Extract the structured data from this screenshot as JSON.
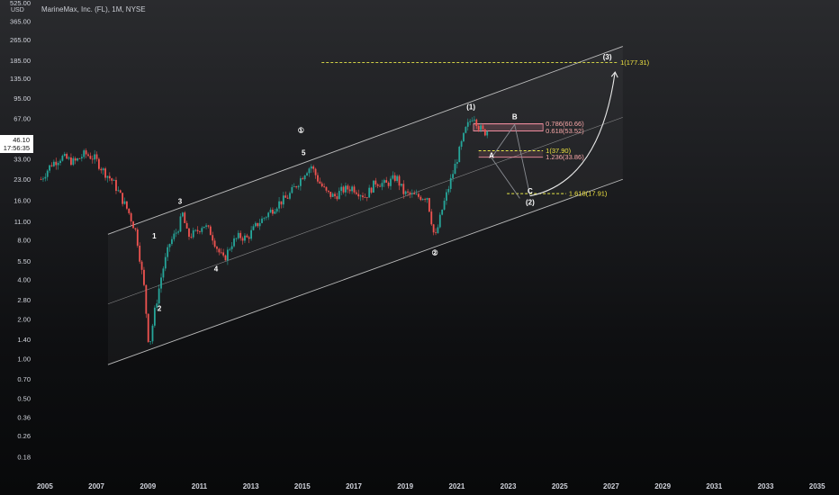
{
  "header": {
    "title": "MarineMax, Inc. (FL), 1M, NYSE",
    "currency": "USD",
    "price": "46.10",
    "countdown": "17:56:35"
  },
  "colors": {
    "candle_up": "#26a69a",
    "candle_down": "#ef5350",
    "channel": "#d8d8d8",
    "fib_line": "#e8e84a",
    "fib_text_yellow": "#f0e442",
    "fib_text_pink": "#f8a7a7",
    "fib_box": "#f48fa0"
  },
  "chart_data": {
    "type": "candlestick",
    "y_scale": "log",
    "ylim": [
      0.15,
      525
    ],
    "y_ticks": [
      "525.00",
      "365.00",
      "265.00",
      "185.00",
      "135.00",
      "95.00",
      "67.00",
      "33.00",
      "23.00",
      "16.00",
      "11.00",
      "8.00",
      "5.50",
      "4.00",
      "2.80",
      "2.00",
      "1.40",
      "1.00",
      "0.70",
      "0.50",
      "0.36",
      "0.26",
      "0.18"
    ],
    "x_ticks": [
      "2005",
      "2007",
      "2009",
      "2011",
      "2013",
      "2015",
      "2017",
      "2019",
      "2021",
      "2023",
      "2025",
      "2027",
      "2029",
      "2031",
      "2033",
      "2035"
    ],
    "xlim": [
      2004.6,
      2035.9
    ],
    "price_path": [
      [
        2004.9,
        23
      ],
      [
        2005.3,
        30
      ],
      [
        2005.7,
        34
      ],
      [
        2006.2,
        31
      ],
      [
        2006.6,
        36
      ],
      [
        2007.0,
        33
      ],
      [
        2007.3,
        27
      ],
      [
        2007.7,
        22
      ],
      [
        2008.0,
        17
      ],
      [
        2008.3,
        13
      ],
      [
        2008.6,
        9
      ],
      [
        2008.9,
        3.5
      ],
      [
        2009.1,
        1.2
      ],
      [
        2009.3,
        2.2
      ],
      [
        2009.6,
        4.5
      ],
      [
        2009.9,
        7.5
      ],
      [
        2010.2,
        9.5
      ],
      [
        2010.4,
        12.5
      ],
      [
        2010.6,
        8.5
      ],
      [
        2010.9,
        9
      ],
      [
        2011.2,
        10.5
      ],
      [
        2011.5,
        9
      ],
      [
        2011.8,
        6.5
      ],
      [
        2012.0,
        5.6
      ],
      [
        2012.3,
        7.5
      ],
      [
        2012.6,
        8.5
      ],
      [
        2012.9,
        8.2
      ],
      [
        2013.3,
        10.5
      ],
      [
        2013.7,
        12.5
      ],
      [
        2014.1,
        15
      ],
      [
        2014.5,
        17
      ],
      [
        2014.9,
        22
      ],
      [
        2015.2,
        27
      ],
      [
        2015.4,
        29
      ],
      [
        2015.7,
        22
      ],
      [
        2016.0,
        18
      ],
      [
        2016.3,
        17
      ],
      [
        2016.6,
        19
      ],
      [
        2017.0,
        20
      ],
      [
        2017.5,
        17
      ],
      [
        2017.9,
        22
      ],
      [
        2018.3,
        21
      ],
      [
        2018.7,
        24
      ],
      [
        2019.0,
        18
      ],
      [
        2019.5,
        17
      ],
      [
        2019.9,
        17
      ],
      [
        2020.2,
        8
      ],
      [
        2020.5,
        14
      ],
      [
        2020.8,
        22
      ],
      [
        2021.1,
        35
      ],
      [
        2021.4,
        55
      ],
      [
        2021.7,
        72
      ],
      [
        2021.9,
        58
      ],
      [
        2022.1,
        52
      ],
      [
        2022.3,
        55
      ]
    ],
    "wave_labels": [
      {
        "t": "1",
        "x": 2009.3,
        "y": 8.2
      },
      {
        "t": "2",
        "x": 2009.5,
        "y": 2.3
      },
      {
        "t": "3",
        "x": 2010.3,
        "y": 15
      },
      {
        "t": "4",
        "x": 2011.7,
        "y": 4.6
      },
      {
        "t": "5",
        "x": 2015.1,
        "y": 35
      },
      {
        "t": "①",
        "x": 2015.0,
        "y": 52,
        "circle": true
      },
      {
        "t": "②",
        "x": 2020.2,
        "y": 6.1,
        "circle": true
      },
      {
        "t": "(1)",
        "x": 2021.6,
        "y": 78
      },
      {
        "t": "(2)",
        "x": 2023.9,
        "y": 14.8
      },
      {
        "t": "(3)",
        "x": 2026.9,
        "y": 188
      },
      {
        "t": "A",
        "x": 2022.4,
        "y": 33.5,
        "yellow": true
      },
      {
        "t": "B",
        "x": 2023.3,
        "y": 66,
        "yellow": true
      },
      {
        "t": "C",
        "x": 2023.9,
        "y": 18,
        "yellow": true
      }
    ],
    "fib_levels": [
      {
        "label": "1(177.31)",
        "value": 177.31,
        "x1": 2015.8,
        "x2": 2027.3,
        "color": "yellow"
      },
      {
        "label": "0.786(60.66)",
        "value": 60.66,
        "x1": 2021.7,
        "x2": 2024.4,
        "color": "pink"
      },
      {
        "label": "0.618(53.52)",
        "value": 53.52,
        "x1": 2021.7,
        "x2": 2024.4,
        "color": "pink"
      },
      {
        "label": "1(37.90)",
        "value": 37.9,
        "x1": 2021.9,
        "x2": 2024.4,
        "color": "yellow"
      },
      {
        "label": "1.236(33.86)",
        "value": 33.86,
        "x1": 2021.9,
        "x2": 2024.4,
        "color": "pink"
      },
      {
        "label": "1.618(17.91)",
        "value": 17.91,
        "x1": 2023.0,
        "x2": 2025.3,
        "color": "yellow"
      }
    ],
    "channels": [
      {
        "name": "upper",
        "x1": 2007.5,
        "y1": 8.8,
        "x2": 2027.5,
        "y2": 235
      },
      {
        "name": "middle",
        "x1": 2007.5,
        "y1": 2.6,
        "x2": 2027.5,
        "y2": 68
      },
      {
        "name": "lower",
        "x1": 2007.5,
        "y1": 0.9,
        "x2": 2027.5,
        "y2": 23
      }
    ],
    "projection": [
      [
        2023.5,
        16.5
      ],
      [
        2022.4,
        33.5
      ],
      [
        2023.3,
        60
      ],
      [
        2023.9,
        17.2
      ],
      [
        2027.2,
        150
      ]
    ]
  }
}
